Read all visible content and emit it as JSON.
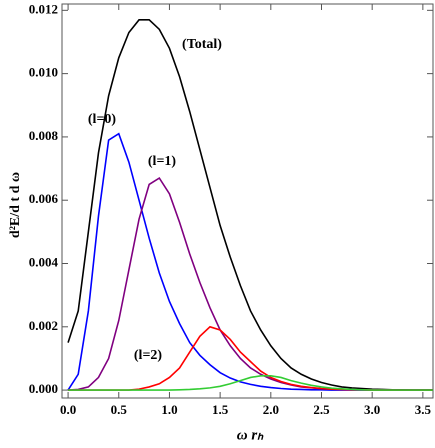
{
  "chart_data": {
    "type": "line",
    "xlabel": "ω rₕ",
    "ylabel": "d²E/d t d ω",
    "x": [
      0,
      0.1,
      0.2,
      0.3,
      0.4,
      0.5,
      0.6,
      0.7,
      0.8,
      0.9,
      1.0,
      1.1,
      1.2,
      1.3,
      1.4,
      1.5,
      1.6,
      1.7,
      1.8,
      1.9,
      2.0,
      2.1,
      2.2,
      2.3,
      2.4,
      2.5,
      2.6,
      2.7,
      2.8,
      2.9,
      3.0,
      3.1,
      3.2,
      3.3,
      3.4,
      3.5,
      3.6
    ],
    "series": [
      {
        "name": "(Total)",
        "color": "#000000",
        "values": [
          0.0015,
          0.0025,
          0.005,
          0.0075,
          0.0093,
          0.0105,
          0.0113,
          0.0117,
          0.0117,
          0.0114,
          0.0108,
          0.0099,
          0.0088,
          0.0076,
          0.0064,
          0.0052,
          0.0042,
          0.0033,
          0.0025,
          0.0019,
          0.0014,
          0.001,
          0.0007,
          0.0005,
          0.00035,
          0.00024,
          0.00016,
          0.0001,
          7e-05,
          5e-05,
          3e-05,
          2e-05,
          1e-05,
          1e-05,
          0,
          0,
          0
        ]
      },
      {
        "name": "(l=0)",
        "color": "#0000ff",
        "values": [
          0,
          0.0005,
          0.0025,
          0.0055,
          0.0079,
          0.0081,
          0.0072,
          0.006,
          0.0048,
          0.0037,
          0.0028,
          0.0021,
          0.0015,
          0.0011,
          0.0008,
          0.00055,
          0.00038,
          0.00026,
          0.00018,
          0.00012,
          8e-05,
          5e-05,
          3e-05,
          2e-05,
          1e-05,
          1e-05,
          0,
          0,
          0,
          0,
          0,
          0,
          0,
          0,
          0,
          0,
          0
        ]
      },
      {
        "name": "(l=1)",
        "color": "#800080",
        "values": [
          0,
          2e-05,
          0.0001,
          0.0004,
          0.001,
          0.0022,
          0.0038,
          0.0054,
          0.0065,
          0.0067,
          0.0062,
          0.0053,
          0.0043,
          0.0034,
          0.0026,
          0.0019,
          0.0014,
          0.001,
          0.0007,
          0.0005,
          0.00035,
          0.00024,
          0.00016,
          0.0001,
          7e-05,
          4e-05,
          3e-05,
          2e-05,
          1e-05,
          1e-05,
          0,
          0,
          0,
          0,
          0,
          0,
          0
        ]
      },
      {
        "name": "(l=2)",
        "color": "#ff0000",
        "values": [
          0,
          0,
          0,
          0,
          0,
          0,
          0,
          3e-05,
          0.0001,
          0.0002,
          0.0004,
          0.0007,
          0.0012,
          0.0017,
          0.002,
          0.0019,
          0.0016,
          0.0012,
          0.0009,
          0.0006,
          0.0004,
          0.00027,
          0.00018,
          0.00012,
          8e-05,
          5e-05,
          3e-05,
          2e-05,
          1e-05,
          1e-05,
          0,
          0,
          0,
          0,
          0,
          0,
          0
        ]
      },
      {
        "color": "#33cc33",
        "values": [
          0,
          0,
          0,
          0,
          0,
          0,
          0,
          0,
          0,
          0,
          0,
          1e-05,
          2e-05,
          4e-05,
          7e-05,
          0.00012,
          0.0002,
          0.0003,
          0.0004,
          0.00045,
          0.00045,
          0.0004,
          0.0003,
          0.00022,
          0.00015,
          0.0001,
          6e-05,
          4e-05,
          2e-05,
          1e-05,
          0,
          0,
          0,
          0,
          0,
          0,
          0
        ]
      }
    ],
    "xlim": [
      -0.06,
      3.6
    ],
    "xticks": [
      {
        "value": 0,
        "label": "0.0"
      },
      0.5,
      {
        "value": 1,
        "label": "1.0"
      },
      1.5,
      {
        "value": 2,
        "label": "2.0"
      },
      2.5,
      {
        "value": 3,
        "label": "3.0"
      },
      3.5
    ],
    "ylim": [
      -0.00025,
      0.0122
    ],
    "yticks": [
      {
        "value": 0,
        "label": "0.000"
      },
      {
        "value": 0.002,
        "label": "0.002"
      },
      {
        "value": 0.004,
        "label": "0.004"
      },
      {
        "value": 0.006,
        "label": "0.006"
      },
      {
        "value": 0.008,
        "label": "0.008"
      },
      {
        "value": 0.01,
        "label": "0.010"
      },
      {
        "value": 0.012,
        "label": "0.012"
      }
    ],
    "grid": false
  }
}
